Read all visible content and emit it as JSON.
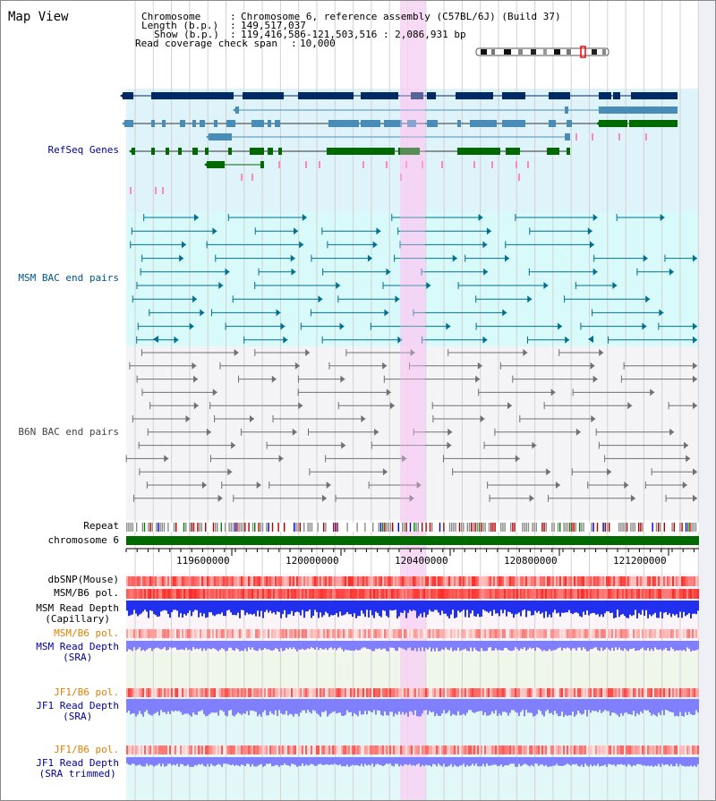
{
  "title": "Map View",
  "header": {
    "chromosome_key": "Chromosome",
    "chromosome_val": "Chromosome 6, reference assembly (C57BL/6J) (Build 37)",
    "length_key": "Length (b.p.)",
    "length_val": "149,517,037",
    "show_key": "Show (b.p.)",
    "show_val": "119,416,586-121,503,516 : 2,086,931 bp",
    "coverage_key": "Read coverage check span",
    "coverage_val": "10,000"
  },
  "tracks": {
    "refseq": "RefSeq Genes",
    "msm_bac": "MSM BAC end pairs",
    "b6n_bac": "B6N BAC end pairs",
    "repeat": "Repeat",
    "chromosome": "chromosome 6",
    "dbsnp": "dbSNP(Mouse)",
    "msm_pol_1": "MSM/B6 pol.",
    "msm_depth_cap_1": "MSM Read Depth",
    "msm_depth_cap_2": "(Capillary)",
    "msm_pol_2": "MSM/B6 pol.",
    "msm_depth_sra_1": "MSM Read Depth",
    "msm_depth_sra_2": "(SRA)",
    "jf1_pol_1": "JF1/B6 pol.",
    "jf1_depth_sra_1": "JF1 Read Depth",
    "jf1_depth_sra_2": "(SRA)",
    "jf1_pol_2": "JF1/B6 pol.",
    "jf1_depth_trim_1": "JF1 Read Depth",
    "jf1_depth_trim_2": "(SRA trimmed)"
  },
  "ruler": {
    "ticks": [
      "119600000",
      "120000000",
      "120400000",
      "120800000",
      "121200000"
    ]
  },
  "colors": {
    "refseq_bg": "#dff3fb",
    "msm_bg": "#d8fafa",
    "b6n_bg": "#f4f4f6",
    "highlight": "#f7d2f4",
    "gene_dark": "#002a66",
    "gene_mid": "#4a8cb8",
    "gene_green": "#006a00",
    "msm_line": "#007090",
    "b6n_line": "#707070",
    "depth_blue": "#2030ee",
    "depth_light": "#8080ff",
    "label_red": "#cc0000",
    "label_blue": "#000099",
    "label_orange": "#e08000",
    "label_teal": "#005588"
  }
}
